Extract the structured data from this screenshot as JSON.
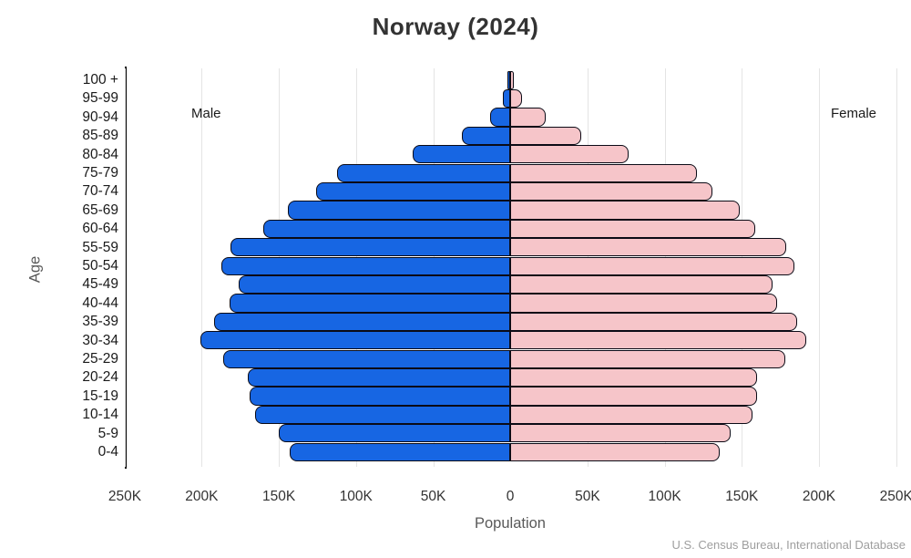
{
  "title": "Norway (2024)",
  "ylabel": "Age",
  "xlabel": "Population",
  "male_label": "Male",
  "female_label": "Female",
  "source": "U.S. Census Bureau, International Database",
  "x_ticks": [
    "250K",
    "200K",
    "150K",
    "100K",
    "50K",
    "0",
    "50K",
    "100K",
    "150K",
    "200K",
    "250K"
  ],
  "colors": {
    "male_bar": "#1766e3",
    "female_bar": "#f6c5c9",
    "bar_border": "#0b0b16",
    "gridline": "#e4e4e4",
    "axis_spine": "#000000",
    "title_text": "#333333",
    "tick_text": "#333333",
    "muted_text": "#595959",
    "source_text": "#9e9e9e"
  },
  "chart_data": {
    "type": "bar",
    "subtype": "population-pyramid",
    "title": "Norway (2024)",
    "xlabel": "Population",
    "ylabel": "Age",
    "unit": "persons",
    "legend_position": "inside-top (Male left, Female right)",
    "grid": "vertical gridlines every 50K",
    "axis_tick_values": [
      -250000,
      -200000,
      -150000,
      -100000,
      -50000,
      0,
      50000,
      100000,
      150000,
      200000,
      250000
    ],
    "xlim": [
      -250000,
      250000
    ],
    "categories": [
      "100 +",
      "95-99",
      "90-94",
      "85-89",
      "80-84",
      "75-79",
      "70-74",
      "65-69",
      "60-64",
      "55-59",
      "50-54",
      "45-49",
      "40-44",
      "35-39",
      "30-34",
      "25-29",
      "20-24",
      "15-19",
      "10-14",
      "5-9",
      "0-4"
    ],
    "series": [
      {
        "name": "Male",
        "direction": "left",
        "values": [
          1500,
          4500,
          13000,
          31000,
          63000,
          112000,
          126000,
          144000,
          160000,
          181000,
          187000,
          176000,
          182000,
          192000,
          201000,
          186000,
          170000,
          169000,
          165000,
          150000,
          143000
        ]
      },
      {
        "name": "Female",
        "direction": "right",
        "values": [
          2500,
          7500,
          23000,
          46000,
          77000,
          121000,
          131000,
          149000,
          159000,
          179000,
          184000,
          170000,
          173000,
          186000,
          192000,
          178000,
          160000,
          160000,
          157000,
          143000,
          136000
        ]
      }
    ]
  }
}
